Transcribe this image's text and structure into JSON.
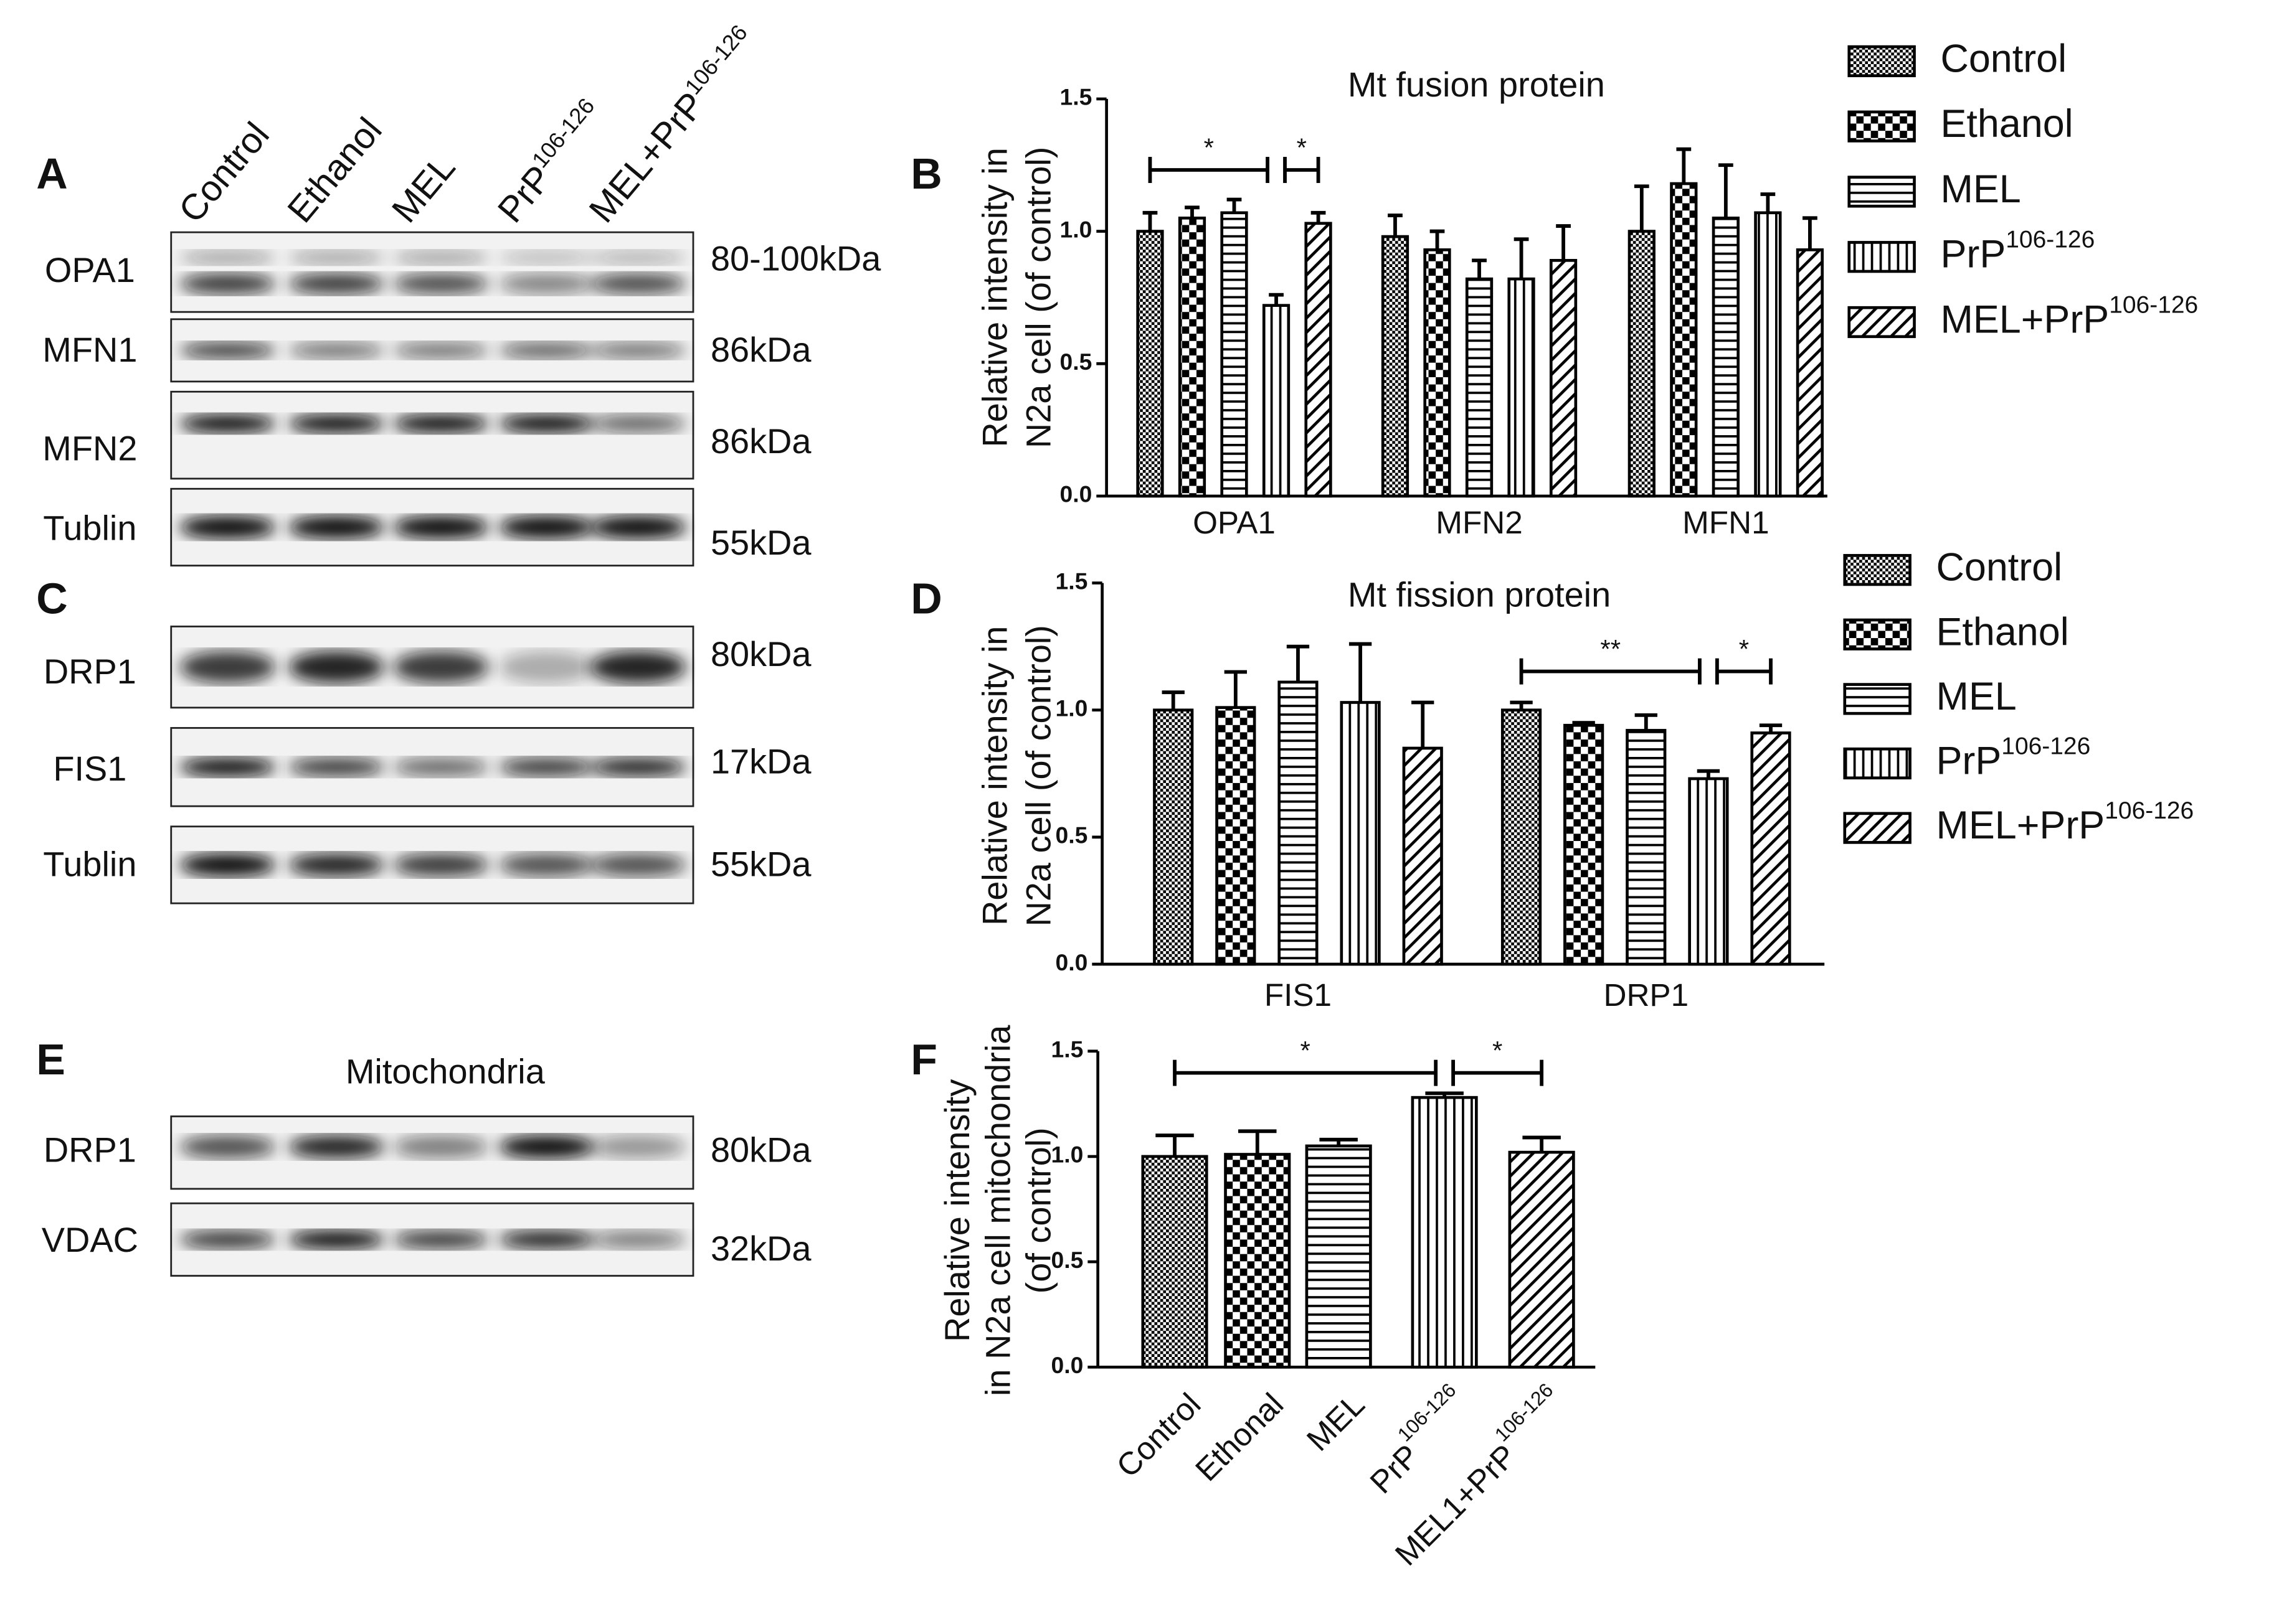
{
  "panel_labels": [
    "A",
    "B",
    "C",
    "D",
    "E",
    "F"
  ],
  "lanes": [
    {
      "name": "Control"
    },
    {
      "name": "Ethanol"
    },
    {
      "name": "MEL"
    },
    {
      "name": "PrP",
      "name_sup": "106-126"
    },
    {
      "name": "MEL+PrP",
      "name_sup": "106-126"
    }
  ],
  "blot_rows": [
    {
      "label": "OPA1",
      "size": "80-100kDa"
    },
    {
      "label": "MFN1",
      "size": "86kDa"
    },
    {
      "label": "MFN2",
      "size": "86kDa"
    },
    {
      "label": "Tublin",
      "size": "55kDa"
    },
    {
      "label": "DRP1",
      "size": "80kDa"
    },
    {
      "label": "FIS1",
      "size": "17kDa"
    },
    {
      "label": "Tublin",
      "size": "55kDa"
    },
    {
      "label": "DRP1",
      "size": "80kDa"
    },
    {
      "label": "VDAC",
      "size": "32kDa"
    }
  ],
  "mito_title": "Mitochondria",
  "chart_data": [
    {
      "type": "bar",
      "title": "Mt fusion protein",
      "y_label": [
        "Relative intensity in",
        "N2a cell (of control)"
      ],
      "categories": [
        "OPA1",
        "MFN2",
        "MFN1"
      ],
      "series": [
        {
          "name": "Control",
          "color": "#000000",
          "values": [
            1.0,
            0.98,
            1.0
          ],
          "errors": [
            0.07,
            0.08,
            0.17
          ]
        },
        {
          "name": "Ethanol",
          "color": "#000000",
          "values": [
            1.05,
            0.93,
            1.18
          ],
          "errors": [
            0.04,
            0.07,
            0.13
          ]
        },
        {
          "name": "MEL",
          "color": "#000000",
          "values": [
            1.07,
            0.82,
            1.05
          ],
          "errors": [
            0.05,
            0.07,
            0.2
          ]
        },
        {
          "name": "PrP",
          "name_sup": "106-126",
          "color": "#000000",
          "values": [
            0.72,
            0.82,
            1.07
          ],
          "errors": [
            0.04,
            0.15,
            0.07
          ]
        },
        {
          "name": "MEL+PrP",
          "name_sup": "106-126",
          "color": "#000000",
          "values": [
            1.03,
            0.89,
            0.93
          ],
          "errors": [
            0.04,
            0.13,
            0.12
          ]
        }
      ],
      "ylim": [
        0,
        1.5
      ],
      "yticks": [
        {
          "value": 0,
          "label": "0.0"
        },
        0.5,
        {
          "value": 1,
          "label": "1.0"
        },
        1.5
      ],
      "annotations": [
        "*",
        "*"
      ]
    },
    {
      "type": "bar",
      "title": "Mt fission protein",
      "y_label": [
        "Relative intensity in",
        "N2a cell (of control)"
      ],
      "categories": [
        "FIS1",
        "DRP1"
      ],
      "series": [
        {
          "name": "Control",
          "color": "#000000",
          "values": [
            1.0,
            1.0
          ],
          "errors": [
            0.07,
            0.03
          ]
        },
        {
          "name": "Ethanol",
          "color": "#000000",
          "values": [
            1.01,
            0.94
          ],
          "errors": [
            0.14,
            0.01
          ]
        },
        {
          "name": "MEL",
          "color": "#000000",
          "values": [
            1.11,
            0.92
          ],
          "errors": [
            0.14,
            0.06
          ]
        },
        {
          "name": "PrP",
          "name_sup": "106-126",
          "color": "#000000",
          "values": [
            1.03,
            0.73
          ],
          "errors": [
            0.23,
            0.03
          ]
        },
        {
          "name": "MEL+PrP",
          "name_sup": "106-126",
          "color": "#000000",
          "values": [
            0.85,
            0.91
          ],
          "errors": [
            0.18,
            0.03
          ]
        }
      ],
      "ylim": [
        0,
        1.5
      ],
      "yticks": [
        {
          "value": 0,
          "label": "0.0"
        },
        0.5,
        {
          "value": 1,
          "label": "1.0"
        },
        1.5
      ],
      "annotations": [
        "**",
        "*"
      ]
    },
    {
      "type": "bar",
      "y_label": [
        "Relative intensity",
        "in N2a cell mitochondria",
        "(of control)"
      ],
      "categories": [
        "Control",
        "Ethonal",
        "MEL",
        "PrP",
        "MEL1+PrP"
      ],
      "category_sup": [
        null,
        null,
        null,
        "106-126",
        "106-126"
      ],
      "values": [
        1.0,
        1.01,
        1.05,
        1.28,
        1.02
      ],
      "errors": [
        0.1,
        0.11,
        0.03,
        0.02,
        0.07
      ],
      "color": "#000000",
      "ylim": [
        0,
        1.5
      ],
      "yticks": [
        {
          "value": 0,
          "label": "0.0"
        },
        0.5,
        {
          "value": 1,
          "label": "1.0"
        },
        1.5
      ],
      "annotations": [
        "*",
        "*"
      ]
    }
  ]
}
